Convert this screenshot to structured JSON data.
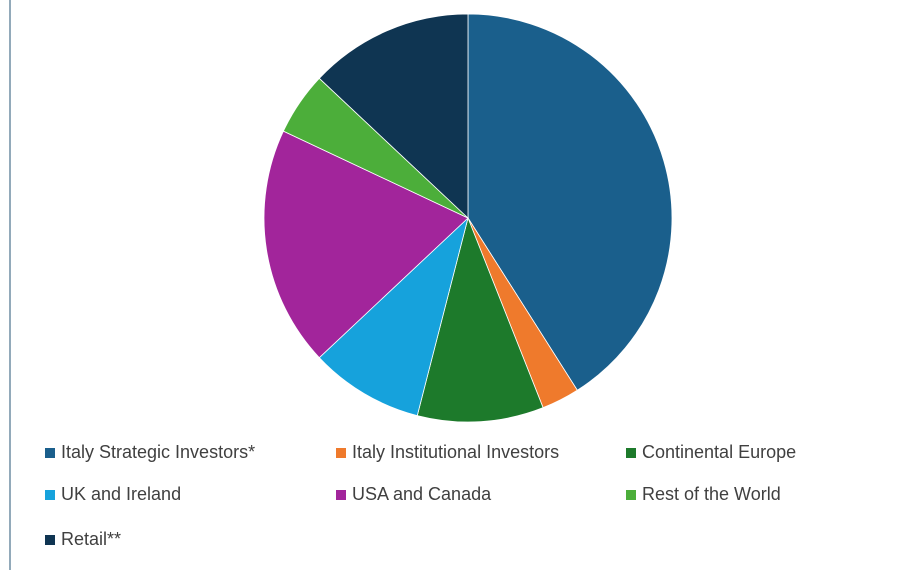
{
  "chart_data": {
    "type": "pie",
    "categories": [
      "Italy Strategic Investors*",
      "Italy Institutional Investors",
      "Continental Europe",
      "UK and Ireland",
      "USA and Canada",
      "Rest of the World",
      "Retail**"
    ],
    "values": [
      41,
      3,
      10,
      9,
      19,
      5,
      13
    ],
    "colors": [
      "#1a5f8c",
      "#ef7a2c",
      "#1d7a2b",
      "#16a2dc",
      "#a2259b",
      "#4cae3a",
      "#0f3552"
    ],
    "legend": "bottom"
  }
}
